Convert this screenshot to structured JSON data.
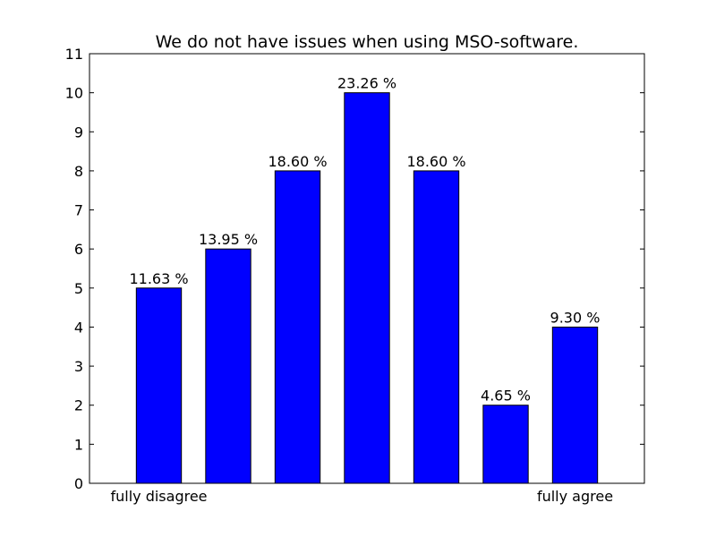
{
  "chart_data": {
    "type": "bar",
    "title": "We do not have issues when using MSO-software.",
    "xlabel": "",
    "ylabel": "",
    "categories": [
      "1",
      "2",
      "3",
      "4",
      "5",
      "6",
      "7"
    ],
    "category_labels": [
      "fully disagree",
      "",
      "",
      "",
      "",
      "",
      "fully agree"
    ],
    "values": [
      5,
      6,
      8,
      10,
      8,
      2,
      4
    ],
    "data_labels": [
      "11.63 %",
      "13.95 %",
      "18.60 %",
      "23.26 %",
      "18.60 %",
      "4.65 %",
      "9.30 %"
    ],
    "ylim": [
      0,
      11
    ],
    "yticks": [
      0,
      1,
      2,
      3,
      4,
      5,
      6,
      7,
      8,
      9,
      10,
      11
    ],
    "bar_color": "#0000ff",
    "edge_color": "#000000",
    "grid": false,
    "legend": "none"
  }
}
